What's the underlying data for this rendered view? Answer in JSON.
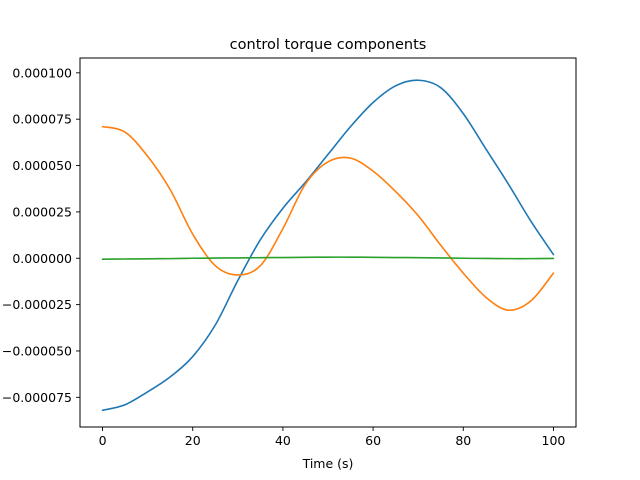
{
  "chart_data": {
    "type": "line",
    "title": "control torque components",
    "xlabel": "Time (s)",
    "ylabel": "",
    "xlim": [
      -5,
      105
    ],
    "ylim": [
      -9.1e-05,
      0.000108
    ],
    "xticks": [
      0,
      20,
      40,
      60,
      80,
      100
    ],
    "xtick_labels": [
      "0",
      "20",
      "40",
      "60",
      "80",
      "100"
    ],
    "yticks": [
      -7.5e-05,
      -5e-05,
      -2.5e-05,
      0,
      2.5e-05,
      5e-05,
      7.5e-05,
      0.0001
    ],
    "ytick_labels": [
      "−0.000075",
      "−0.000050",
      "−0.000025",
      "0.000000",
      "0.000025",
      "0.000050",
      "0.000075",
      "0.000100"
    ],
    "grid": false,
    "legend": null,
    "x": [
      0,
      5,
      10,
      15,
      20,
      25,
      30,
      35,
      40,
      45,
      50,
      55,
      60,
      65,
      70,
      75,
      80,
      85,
      90,
      95,
      100
    ],
    "series": [
      {
        "color": "#1f77b4",
        "values": [
          -8.2e-05,
          -7.9e-05,
          -7.2e-05,
          -6.4e-05,
          -5.3e-05,
          -3.6e-05,
          -1.2e-05,
          1e-05,
          2.7e-05,
          4.1e-05,
          5.6e-05,
          7.1e-05,
          8.4e-05,
          9.3e-05,
          9.6e-05,
          9.2e-05,
          7.8e-05,
          5.9e-05,
          4e-05,
          2e-05,
          2e-06
        ]
      },
      {
        "color": "#ff7f0e",
        "values": [
          7.1e-05,
          6.8e-05,
          5.5e-05,
          3.7e-05,
          1.3e-05,
          -4e-06,
          -9e-06,
          -4e-06,
          1.6e-05,
          4e-05,
          5.2e-05,
          5.4e-05,
          4.7e-05,
          3.6e-05,
          2.3e-05,
          7e-06,
          -8e-06,
          -2.1e-05,
          -2.8e-05,
          -2.3e-05,
          -8e-06
        ]
      },
      {
        "color": "#2ca02c",
        "values": [
          -5e-07,
          -4e-07,
          -3e-07,
          -2e-07,
          0,
          1e-07,
          2e-07,
          3e-07,
          4e-07,
          5e-07,
          6e-07,
          6e-07,
          5e-07,
          4e-07,
          3e-07,
          2e-07,
          0,
          -1e-07,
          -2e-07,
          -2e-07,
          -1e-07
        ]
      }
    ]
  }
}
